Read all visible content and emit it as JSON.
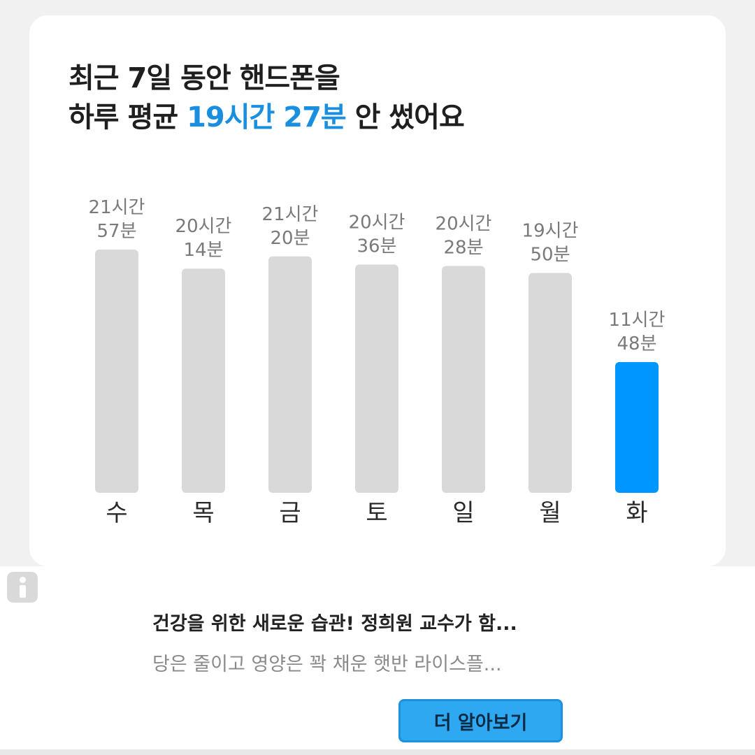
{
  "headline": {
    "line1": "최근 7일 동안 핸드폰을",
    "line2_prefix": "하루 평균 ",
    "line2_highlight": "19시간 27분",
    "line2_suffix": " 안 썼어요"
  },
  "colors": {
    "accent": "#0096ff",
    "bar_default": "#d9d9d9",
    "headline_accent": "#1a8fe0",
    "button": "#2ea8f0"
  },
  "chart_data": {
    "type": "bar",
    "categories": [
      "수",
      "목",
      "금",
      "토",
      "일",
      "월",
      "화"
    ],
    "values_minutes": [
      1317,
      1214,
      1280,
      1236,
      1228,
      1190,
      708
    ],
    "labels": [
      [
        "21시간",
        "57분"
      ],
      [
        "20시간",
        "14분"
      ],
      [
        "21시간",
        "20분"
      ],
      [
        "20시간",
        "36분"
      ],
      [
        "20시간",
        "28분"
      ],
      [
        "19시간",
        "50분"
      ],
      [
        "11시간",
        "48분"
      ]
    ],
    "highlight_index": 6,
    "ylim": [
      0,
      1400
    ],
    "grid": false
  },
  "ad": {
    "info_icon": "info-icon",
    "title": "건강을 위한 새로운 습관! 정희원 교수가 함...",
    "description": "당은 줄이고 영양은 꽉 채운 햇반 라이스플...",
    "button_label": "더 알아보기"
  }
}
